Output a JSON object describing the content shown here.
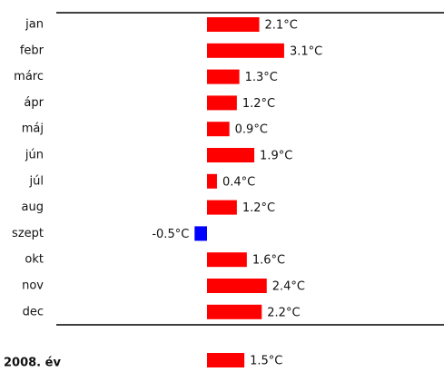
{
  "chart_data": {
    "type": "bar",
    "categories": [
      "jan",
      "febr",
      "márc",
      "ápr",
      "máj",
      "jún",
      "júl",
      "aug",
      "szept",
      "okt",
      "nov",
      "dec"
    ],
    "values": [
      2.1,
      3.1,
      1.3,
      1.2,
      0.9,
      1.9,
      0.4,
      1.2,
      -0.5,
      1.6,
      2.4,
      2.2
    ],
    "value_labels": [
      "2.1°C",
      "3.1°C",
      "1.3°C",
      "1.2°C",
      "0.9°C",
      "1.9°C",
      "0.4°C",
      "1.2°C",
      "-0.5°C",
      "1.6°C",
      "2.4°C",
      "2.2°C"
    ],
    "color": "#ff0000",
    "negative_color": "#0000ff",
    "summary": {
      "label": "2008. év",
      "value": 1.5,
      "value_label": "1.5°C"
    }
  }
}
